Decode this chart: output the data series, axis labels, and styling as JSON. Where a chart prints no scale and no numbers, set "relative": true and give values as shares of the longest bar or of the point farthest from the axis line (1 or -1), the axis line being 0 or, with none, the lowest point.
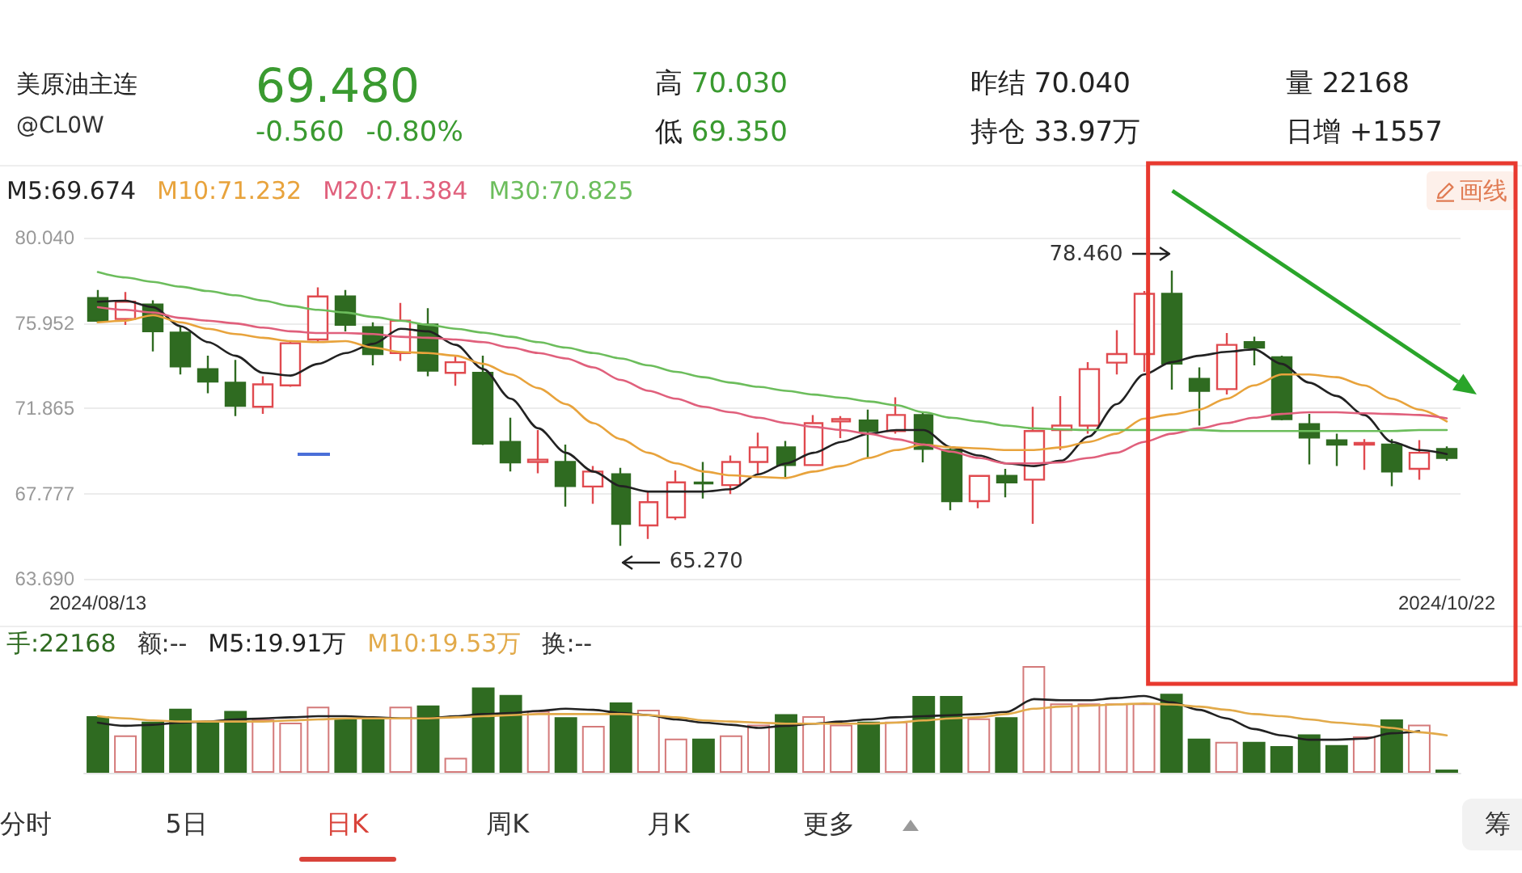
{
  "chart_data": [
    {
      "type": "other",
      "title": "美原油主连",
      "subtitle": "@CL0W",
      "annotations": [
        "69.480",
        "-0.560 -0.80%",
        "高 70.030",
        "低 69.350",
        "昨结 70.040",
        "持仓 33.97万",
        "量 22168",
        "日增 +1557"
      ]
    },
    {
      "type": "candlestick",
      "categories": [
        "2024/08/13",
        null,
        null,
        null,
        null,
        null,
        null,
        null,
        null,
        null,
        null,
        null,
        null,
        null,
        null,
        null,
        null,
        null,
        null,
        null,
        null,
        null,
        null,
        null,
        null,
        null,
        null,
        null,
        null,
        null,
        null,
        null,
        null,
        null,
        null,
        null,
        null,
        null,
        null,
        null,
        null,
        null,
        null,
        null,
        null,
        null,
        null,
        null,
        null,
        "2024/10/22"
      ],
      "ohlc": [
        [
          77.15,
          77.53,
          75.93,
          76.06
        ],
        [
          76.14,
          77.43,
          75.86,
          76.97
        ],
        [
          76.84,
          77.04,
          74.59,
          75.55
        ],
        [
          75.49,
          75.8,
          73.48,
          73.87
        ],
        [
          73.74,
          74.38,
          72.58,
          73.14
        ],
        [
          73.09,
          74.18,
          71.49,
          71.98
        ],
        [
          71.93,
          73.4,
          71.59,
          73.01
        ],
        [
          72.96,
          75.08,
          72.89,
          74.98
        ],
        [
          75.16,
          77.66,
          75.03,
          77.22
        ],
        [
          77.22,
          77.53,
          75.55,
          75.86
        ],
        [
          75.75,
          75.98,
          73.92,
          74.46
        ],
        [
          74.51,
          76.91,
          74.13,
          76.06
        ],
        [
          75.88,
          76.66,
          73.4,
          73.66
        ],
        [
          73.56,
          74.38,
          72.94,
          74.07
        ],
        [
          73.56,
          74.38,
          70.1,
          70.17
        ],
        [
          70.25,
          71.41,
          68.83,
          69.27
        ],
        [
          69.29,
          70.82,
          68.75,
          69.4
        ],
        [
          69.29,
          70.12,
          67.15,
          68.13
        ],
        [
          68.11,
          69.09,
          67.28,
          68.83
        ],
        [
          68.7,
          69.01,
          65.27,
          66.32
        ],
        [
          66.25,
          67.87,
          65.6,
          67.36
        ],
        [
          66.63,
          68.88,
          66.51,
          68.31
        ],
        [
          68.3,
          69.29,
          67.54,
          68.26
        ],
        [
          68.18,
          69.6,
          67.75,
          69.29
        ],
        [
          69.29,
          70.69,
          68.65,
          69.99
        ],
        [
          69.99,
          70.3,
          68.57,
          69.14
        ],
        [
          69.14,
          71.54,
          69.09,
          71.15
        ],
        [
          71.23,
          71.49,
          70.43,
          71.34
        ],
        [
          71.28,
          71.8,
          69.48,
          70.77
        ],
        [
          70.77,
          72.39,
          70.64,
          71.54
        ],
        [
          71.54,
          71.67,
          69.27,
          69.92
        ],
        [
          69.86,
          69.94,
          66.97,
          67.41
        ],
        [
          67.41,
          68.65,
          67.07,
          68.62
        ],
        [
          68.62,
          68.96,
          67.59,
          68.31
        ],
        [
          68.44,
          71.93,
          66.32,
          70.77
        ],
        [
          70.82,
          72.45,
          69.86,
          71.03
        ],
        [
          71.03,
          74.07,
          70.64,
          73.74
        ],
        [
          74.05,
          75.6,
          73.48,
          74.46
        ],
        [
          74.46,
          77.48,
          73.61,
          77.35
        ],
        [
          77.35,
          78.46,
          72.76,
          74.0
        ],
        [
          73.27,
          73.82,
          71.03,
          72.7
        ],
        [
          72.78,
          75.47,
          72.52,
          74.9
        ],
        [
          75.03,
          75.29,
          73.92,
          74.77
        ],
        [
          74.31,
          74.38,
          71.28,
          71.34
        ],
        [
          71.1,
          71.59,
          69.17,
          70.46
        ],
        [
          70.33,
          70.64,
          69.09,
          70.12
        ],
        [
          70.12,
          70.38,
          68.91,
          70.2
        ],
        [
          70.12,
          70.38,
          68.13,
          68.83
        ],
        [
          68.96,
          70.33,
          68.44,
          69.73
        ],
        [
          69.91,
          70.03,
          69.35,
          69.48
        ]
      ],
      "ylim": [
        63.69,
        80.04
      ],
      "yticks": [
        {
          "value": 63.69,
          "label": "63.690"
        },
        67.777,
        71.865,
        75.952,
        {
          "value": 80.04,
          "label": "80.040"
        }
      ],
      "grid": "y",
      "legend": "top left",
      "marker": "none",
      "series": [
        {
          "type": "line",
          "name": "M5:69.674",
          "color": "#222222",
          "values": [
            76.97,
            77.02,
            76.71,
            75.8,
            75.03,
            74.38,
            73.56,
            73.43,
            73.99,
            74.51,
            74.95,
            75.67,
            75.55,
            74.9,
            73.74,
            72.32,
            70.9,
            69.73,
            68.83,
            68.13,
            67.87,
            67.87,
            67.87,
            67.98,
            68.7,
            69.22,
            69.73,
            70.25,
            70.64,
            70.82,
            70.82,
            69.99,
            69.6,
            69.22,
            69.09,
            69.35,
            70.51,
            72.06,
            73.48,
            74.07,
            74.38,
            74.57,
            74.69,
            73.99,
            73.09,
            72.45,
            71.54,
            70.25,
            69.86,
            69.67
          ]
        },
        {
          "type": "line",
          "name": "M10:71.232",
          "color": "#e8a33c",
          "values": [
            75.98,
            76.06,
            76.32,
            75.98,
            75.67,
            75.42,
            75.24,
            75.08,
            75.03,
            75.08,
            74.77,
            74.56,
            74.51,
            74.38,
            73.99,
            73.48,
            72.83,
            72.06,
            71.15,
            70.38,
            69.73,
            69.22,
            68.83,
            68.65,
            68.57,
            68.52,
            68.83,
            69.09,
            69.48,
            69.86,
            70.12,
            69.99,
            69.94,
            69.86,
            69.86,
            69.99,
            70.25,
            70.64,
            71.36,
            71.57,
            71.8,
            72.32,
            72.96,
            73.48,
            73.48,
            73.35,
            72.96,
            72.32,
            71.8,
            71.23
          ]
        },
        {
          "type": "line",
          "name": "M20:71.384",
          "color": "#e0607c",
          "values": [
            76.71,
            76.58,
            76.45,
            76.19,
            76.06,
            75.93,
            75.73,
            75.55,
            75.47,
            75.47,
            75.42,
            75.29,
            75.24,
            75.16,
            75.03,
            74.77,
            74.51,
            74.25,
            73.82,
            73.22,
            72.7,
            72.32,
            71.93,
            71.67,
            71.41,
            71.15,
            70.97,
            70.82,
            70.64,
            70.38,
            70.12,
            69.78,
            69.48,
            69.22,
            69.22,
            69.27,
            69.48,
            69.73,
            70.25,
            70.64,
            70.9,
            71.15,
            71.41,
            71.59,
            71.67,
            71.67,
            71.62,
            71.59,
            71.54,
            71.38
          ]
        },
        {
          "type": "line",
          "name": "M30:70.825",
          "color": "#6cbd5c",
          "values": [
            78.39,
            78.13,
            77.92,
            77.69,
            77.48,
            77.28,
            77.02,
            76.76,
            76.58,
            76.45,
            76.24,
            76.06,
            75.86,
            75.67,
            75.49,
            75.29,
            75.03,
            74.77,
            74.51,
            74.25,
            73.92,
            73.61,
            73.35,
            73.09,
            72.89,
            72.7,
            72.52,
            72.37,
            72.19,
            72.01,
            71.67,
            71.41,
            71.23,
            71.03,
            70.9,
            70.85,
            70.82,
            70.82,
            70.82,
            70.82,
            70.82,
            70.77,
            70.77,
            70.77,
            70.77,
            70.77,
            70.77,
            70.77,
            70.82,
            70.82
          ]
        }
      ],
      "annotations": [
        "画线",
        "78.460",
        "65.270"
      ]
    },
    {
      "type": "bar",
      "relative": true,
      "tick_labels": false,
      "legend": "top left",
      "marker": "none",
      "categories": [
        "2024/08/13",
        null,
        null,
        null,
        null,
        null,
        null,
        null,
        null,
        null,
        null,
        null,
        null,
        null,
        null,
        null,
        null,
        null,
        null,
        null,
        null,
        null,
        null,
        null,
        null,
        null,
        null,
        null,
        null,
        null,
        null,
        null,
        null,
        null,
        null,
        null,
        null,
        null,
        null,
        null,
        null,
        null,
        null,
        null,
        null,
        null,
        null,
        null,
        null,
        "2024/10/22"
      ],
      "series": [
        {
          "name": "手:22168",
          "colors": [
            "#2f6b21",
            "#d47a7a",
            "#2f6b21",
            "#2f6b21",
            "#2f6b21",
            "#2f6b21",
            "#d47a7a",
            "#d47a7a",
            "#d47a7a",
            "#2f6b21",
            "#2f6b21",
            "#d47a7a",
            "#2f6b21",
            "#d47a7a",
            "#2f6b21",
            "#2f6b21",
            "#d47a7a",
            "#2f6b21",
            "#d47a7a",
            "#2f6b21",
            "#d47a7a",
            "#d47a7a",
            "#2f6b21",
            "#d47a7a",
            "#d47a7a",
            "#2f6b21",
            "#d47a7a",
            "#d47a7a",
            "#2f6b21",
            "#d47a7a",
            "#2f6b21",
            "#2f6b21",
            "#d47a7a",
            "#2f6b21",
            "#d47a7a",
            "#d47a7a",
            "#d47a7a",
            "#d47a7a",
            "#d47a7a",
            "#2f6b21",
            "#2f6b21",
            "#d47a7a",
            "#2f6b21",
            "#2f6b21",
            "#2f6b21",
            "#2f6b21",
            "#d47a7a",
            "#2f6b21",
            "#d47a7a",
            "#2f6b21"
          ],
          "values": [
            0.53,
            0.35,
            0.48,
            0.6,
            0.48,
            0.58,
            0.5,
            0.47,
            0.62,
            0.51,
            0.51,
            0.62,
            0.63,
            0.14,
            0.8,
            0.73,
            0.58,
            0.52,
            0.44,
            0.66,
            0.59,
            0.32,
            0.32,
            0.35,
            0.45,
            0.55,
            0.53,
            0.45,
            0.48,
            0.48,
            0.72,
            0.72,
            0.51,
            0.52,
            1,
            0.65,
            0.65,
            0.65,
            0.65,
            0.74,
            0.32,
            0.29,
            0.29,
            0.25,
            0.36,
            0.26,
            0.34,
            0.5,
            0.45,
            0.03
          ]
        },
        {
          "type": "line",
          "name": "M5:19.91万",
          "color": "#222222",
          "values": [
            0.47,
            0.44,
            0.45,
            0.47,
            0.48,
            0.5,
            0.51,
            0.52,
            0.53,
            0.53,
            0.52,
            0.51,
            0.51,
            0.53,
            0.55,
            0.56,
            0.58,
            0.6,
            0.59,
            0.56,
            0.54,
            0.5,
            0.47,
            0.45,
            0.42,
            0.44,
            0.46,
            0.48,
            0.5,
            0.52,
            0.53,
            0.54,
            0.55,
            0.57,
            0.69,
            0.68,
            0.68,
            0.7,
            0.72,
            0.66,
            0.59,
            0.51,
            0.41,
            0.35,
            0.31,
            0.31,
            0.32,
            0.37,
            0.39,
            null
          ]
        },
        {
          "type": "line",
          "name": "M10:19.53万",
          "color": "#e2aa4a",
          "values": [
            0.53,
            0.51,
            0.49,
            0.48,
            0.48,
            0.48,
            0.48,
            0.49,
            0.5,
            0.51,
            0.51,
            0.51,
            0.51,
            0.52,
            0.53,
            0.54,
            0.55,
            0.55,
            0.55,
            0.55,
            0.54,
            0.52,
            0.49,
            0.48,
            0.47,
            0.46,
            0.46,
            0.46,
            0.46,
            0.47,
            0.49,
            0.51,
            0.52,
            0.55,
            0.6,
            0.62,
            0.63,
            0.64,
            0.65,
            0.64,
            0.62,
            0.59,
            0.55,
            0.53,
            0.5,
            0.47,
            0.45,
            0.42,
            0.38,
            0.35
          ]
        }
      ],
      "annotations": [
        "额:--",
        "换:--"
      ]
    },
    {
      "type": "other",
      "annotations": [
        "分时",
        "5日",
        "日K",
        "周K",
        "月K",
        "更多",
        "筹"
      ]
    }
  ]
}
